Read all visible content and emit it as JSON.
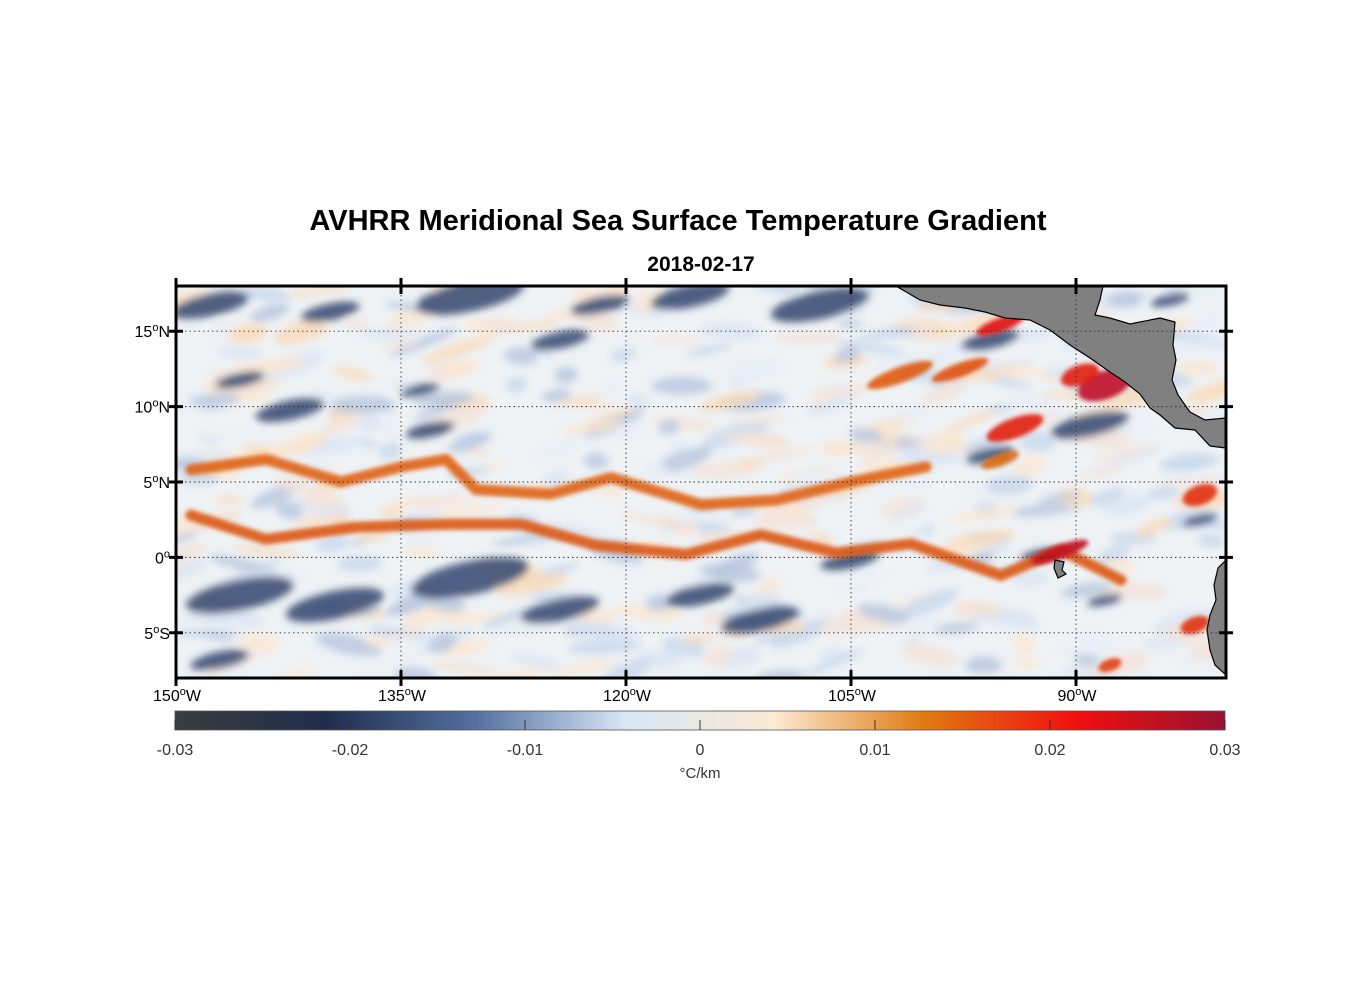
{
  "title": "AVHRR Meridional Sea Surface Temperature Gradient",
  "subtitle": "2018-02-17",
  "map": {
    "lon_range": [
      -150,
      -80
    ],
    "lat_range": [
      -8,
      18
    ],
    "land_color": "#808080",
    "grid": "dotted",
    "lon_ticks": [
      {
        "lon": -150,
        "label": "150",
        "hemi": "W"
      },
      {
        "lon": -135,
        "label": "135",
        "hemi": "W"
      },
      {
        "lon": -120,
        "label": "120",
        "hemi": "W"
      },
      {
        "lon": -105,
        "label": "105",
        "hemi": "W"
      },
      {
        "lon": -90,
        "label": "90",
        "hemi": "W"
      }
    ],
    "lat_ticks": [
      {
        "lat": 15,
        "label": "15",
        "hemi": "N"
      },
      {
        "lat": 10,
        "label": "10",
        "hemi": "N"
      },
      {
        "lat": 5,
        "label": "5",
        "hemi": "N"
      },
      {
        "lat": 0,
        "label": "0",
        "hemi": ""
      },
      {
        "lat": -5,
        "label": "5",
        "hemi": "S"
      }
    ]
  },
  "colorbar": {
    "range": [
      -0.03,
      0.03
    ],
    "ticks": [
      "-0.03",
      "-0.02",
      "-0.01",
      "0",
      "0.01",
      "0.02",
      "0.03"
    ],
    "unit": "°C/km",
    "colors": [
      "#3c3c3c",
      "#1f2d4d",
      "#5470a0",
      "#d7e6f7",
      "#fbe9d2",
      "#e07a10",
      "#f20f0f",
      "#9a1030"
    ]
  },
  "features": {
    "warm_bands": [
      {
        "lon": -149,
        "lat": 5.8
      },
      {
        "lon": -144,
        "lat": 6.5
      },
      {
        "lon": -139,
        "lat": 5.0
      },
      {
        "lon": -135,
        "lat": 6.0
      },
      {
        "lon": -132,
        "lat": 6.5
      },
      {
        "lon": -130,
        "lat": 4.5
      },
      {
        "lon": -125,
        "lat": 4.2
      },
      {
        "lon": -121,
        "lat": 5.3
      },
      {
        "lon": -115,
        "lat": 3.5
      },
      {
        "lon": -110,
        "lat": 3.8
      },
      {
        "lon": -105,
        "lat": 5.0
      },
      {
        "lon": -100,
        "lat": 6.0
      }
    ],
    "equatorial_band": [
      {
        "lon": -149,
        "lat": 2.8
      },
      {
        "lon": -144,
        "lat": 1.2
      },
      {
        "lon": -138,
        "lat": 2.0
      },
      {
        "lon": -132,
        "lat": 2.2
      },
      {
        "lon": -127,
        "lat": 2.2
      },
      {
        "lon": -122,
        "lat": 0.8
      },
      {
        "lon": -116,
        "lat": 0.2
      },
      {
        "lon": -111,
        "lat": 1.5
      },
      {
        "lon": -106,
        "lat": 0.3
      },
      {
        "lon": -101,
        "lat": 0.9
      },
      {
        "lon": -95,
        "lat": -1.2
      },
      {
        "lon": -91,
        "lat": 0.5
      },
      {
        "lon": -87,
        "lat": -1.5
      }
    ]
  }
}
